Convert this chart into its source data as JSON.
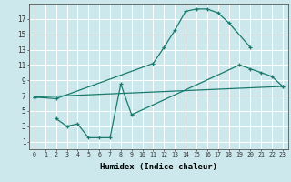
{
  "xlabel": "Humidex (Indice chaleur)",
  "bg_color": "#cce8ec",
  "line_color": "#1a7a6e",
  "grid_color": "#ffffff",
  "xlim": [
    -0.5,
    23.5
  ],
  "ylim": [
    0,
    19
  ],
  "xticks": [
    0,
    1,
    2,
    3,
    4,
    5,
    6,
    7,
    8,
    9,
    10,
    11,
    12,
    13,
    14,
    15,
    16,
    17,
    18,
    19,
    20,
    21,
    22,
    23
  ],
  "yticks": [
    1,
    3,
    5,
    7,
    9,
    11,
    13,
    15,
    17
  ],
  "line1_x": [
    0,
    2,
    11,
    12,
    13,
    14,
    15,
    16,
    17,
    18,
    20
  ],
  "line1_y": [
    6.8,
    6.6,
    11.2,
    13.3,
    15.5,
    18.0,
    18.3,
    18.3,
    17.8,
    16.5,
    13.3
  ],
  "line2_x": [
    0,
    23
  ],
  "line2_y": [
    6.8,
    8.2
  ],
  "line3_x": [
    2,
    3,
    4,
    5,
    6,
    7,
    8,
    9,
    19,
    20,
    21,
    22,
    23
  ],
  "line3_y": [
    4.0,
    3.0,
    3.3,
    1.5,
    1.5,
    1.5,
    8.5,
    4.5,
    11.0,
    10.5,
    10.0,
    9.5,
    8.2
  ]
}
